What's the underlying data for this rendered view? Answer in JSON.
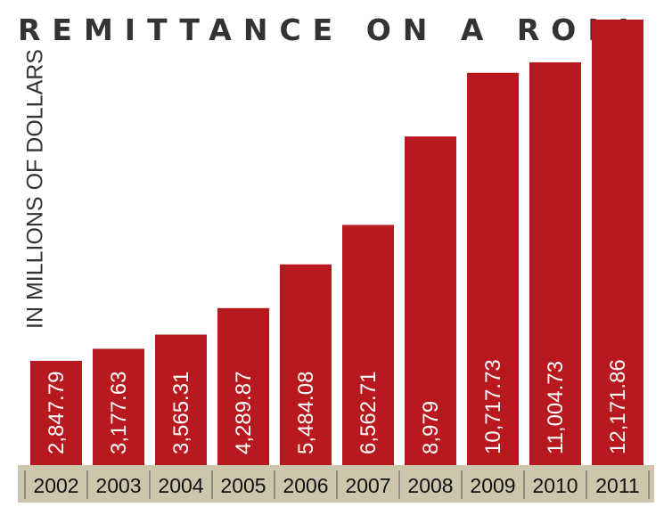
{
  "colors": {
    "bar": "#b7191e",
    "axis_band": "#cdc6ad",
    "axis_text": "#111111",
    "title": "#333333"
  },
  "chart_data": {
    "type": "bar",
    "title": "REMITTANCE ON A ROLL",
    "ylabel": "IN MILLIONS OF DOLLARS",
    "xlabel": "",
    "categories": [
      "2002",
      "2003",
      "2004",
      "2005",
      "2006",
      "2007",
      "2008",
      "2009",
      "2010",
      "2011"
    ],
    "values": [
      2847.79,
      3177.63,
      3565.31,
      4289.87,
      5484.08,
      6562.71,
      8979,
      10717.73,
      11004.73,
      12171.86
    ],
    "value_labels": [
      "2,847.79",
      "3,177.63",
      "3,565.31",
      "4,289.87",
      "5,484.08",
      "6,562.71",
      "8,979",
      "10,717.73",
      "11,004.73",
      "12,171.86"
    ],
    "ylim": [
      0,
      12171.86
    ],
    "grid": false,
    "legend": "none"
  }
}
